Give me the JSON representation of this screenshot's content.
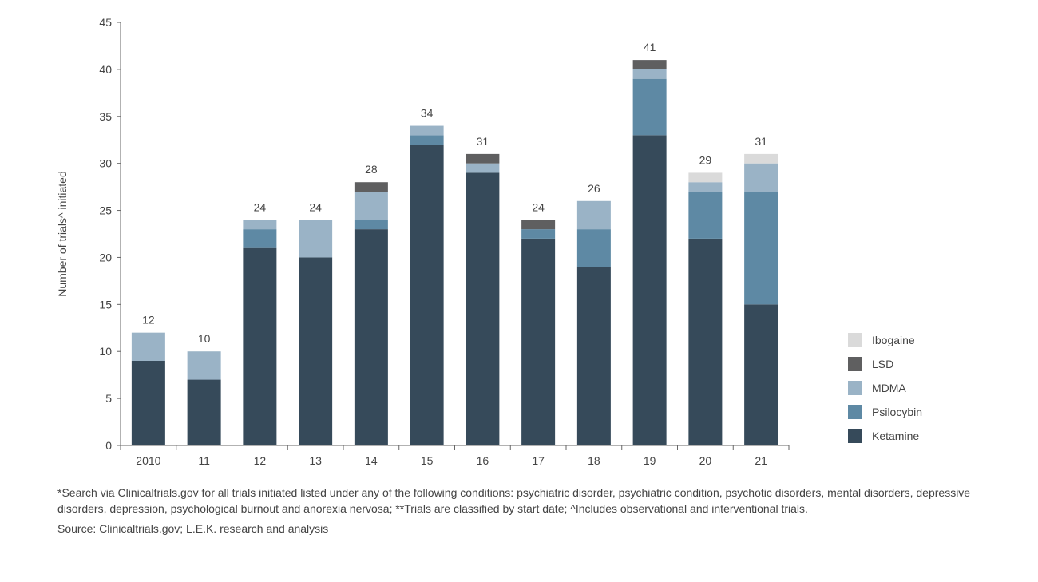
{
  "chart_data": {
    "type": "bar",
    "stacked": true,
    "title": "",
    "xlabel": "",
    "ylabel": "Number of trials^ initiated",
    "ylim": [
      0,
      45
    ],
    "yticks": [
      "0",
      "5",
      "10",
      "15",
      "20",
      "25",
      "30",
      "35",
      "40",
      "45"
    ],
    "categories": [
      "2010",
      "11",
      "12",
      "13",
      "14",
      "15",
      "16",
      "17",
      "18",
      "19",
      "20",
      "21"
    ],
    "series": [
      {
        "name": "Ketamine",
        "color": "#364a5a",
        "values": [
          9,
          7,
          21,
          20,
          23,
          32,
          29,
          22,
          19,
          33,
          22,
          15
        ]
      },
      {
        "name": "Psilocybin",
        "color": "#5e89a4",
        "values": [
          0,
          0,
          2,
          0,
          1,
          1,
          0,
          1,
          4,
          6,
          5,
          12
        ]
      },
      {
        "name": "MDMA",
        "color": "#9ab3c6",
        "values": [
          3,
          3,
          1,
          4,
          3,
          1,
          1,
          0,
          3,
          1,
          1,
          3
        ]
      },
      {
        "name": "LSD",
        "color": "#5f5f60",
        "values": [
          0,
          0,
          0,
          0,
          1,
          0,
          1,
          1,
          0,
          1,
          0,
          0
        ]
      },
      {
        "name": "Ibogaine",
        "color": "#dadada",
        "values": [
          0,
          0,
          0,
          0,
          0,
          0,
          0,
          0,
          0,
          0,
          1,
          1
        ]
      }
    ],
    "totals": [
      "12",
      "10",
      "24",
      "24",
      "28",
      "34",
      "31",
      "24",
      "26",
      "41",
      "29",
      "31"
    ],
    "legend_order": [
      "Ibogaine",
      "LSD",
      "MDMA",
      "Psilocybin",
      "Ketamine"
    ],
    "legend_position": "right"
  },
  "footnote": "*Search via Clinicaltrials.gov for all trials initiated listed under any of the following conditions: psychiatric disorder, psychiatric condition, psychotic disorders, mental disorders, depressive disorders, depression, psychological burnout and anorexia nervosa; **Trials are classified by start date; ^Includes observational and interventional trials.",
  "source": "Source: Clinicaltrials.gov; L.E.K. research and analysis"
}
